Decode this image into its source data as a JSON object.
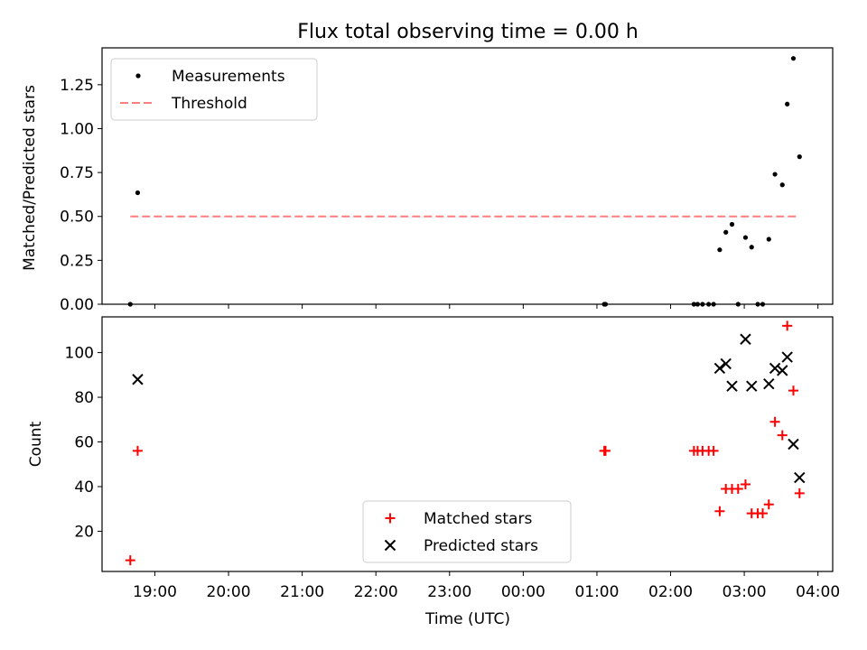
{
  "title": "Flux total observing time = 0.00 h",
  "chart_data": [
    {
      "type": "scatter",
      "panel": "top",
      "ylabel": "Matched/Predicted stars",
      "ylim": [
        0,
        1.46
      ],
      "yticks": [
        0.0,
        0.25,
        0.5,
        0.75,
        1.0,
        1.25
      ],
      "ytick_labels": [
        "0.00",
        "0.25",
        "0.50",
        "0.75",
        "1.00",
        "1.25"
      ],
      "legend_position": "top-left",
      "series": [
        {
          "name": "Measurements",
          "marker": "dot",
          "color": "#000000",
          "points": [
            {
              "t": "18:40",
              "y": 0.0
            },
            {
              "t": "18:46",
              "y": 0.635
            },
            {
              "t": "01:06",
              "y": 0.0
            },
            {
              "t": "01:07",
              "y": 0.0
            },
            {
              "t": "02:19",
              "y": 0.0
            },
            {
              "t": "02:22",
              "y": 0.0
            },
            {
              "t": "02:26",
              "y": 0.0
            },
            {
              "t": "02:31",
              "y": 0.0
            },
            {
              "t": "02:35",
              "y": 0.0
            },
            {
              "t": "02:40",
              "y": 0.31
            },
            {
              "t": "02:45",
              "y": 0.41
            },
            {
              "t": "02:50",
              "y": 0.455
            },
            {
              "t": "02:55",
              "y": 0.0
            },
            {
              "t": "03:01",
              "y": 0.38
            },
            {
              "t": "03:06",
              "y": 0.325
            },
            {
              "t": "03:11",
              "y": 0.0
            },
            {
              "t": "03:15",
              "y": 0.0
            },
            {
              "t": "03:20",
              "y": 0.37
            },
            {
              "t": "03:25",
              "y": 0.74
            },
            {
              "t": "03:31",
              "y": 0.68
            },
            {
              "t": "03:35",
              "y": 1.14
            },
            {
              "t": "03:40",
              "y": 1.4
            },
            {
              "t": "03:45",
              "y": 0.84
            }
          ]
        },
        {
          "name": "Threshold",
          "marker": "dashed-line",
          "color": "#ff7f7f",
          "points": [
            {
              "t": "18:40",
              "y": 0.5
            },
            {
              "t": "03:45",
              "y": 0.5
            }
          ]
        }
      ]
    },
    {
      "type": "scatter",
      "panel": "bottom",
      "xlabel": "Time (UTC)",
      "ylabel": "Count",
      "ylim": [
        2,
        116
      ],
      "yticks": [
        20,
        40,
        60,
        80,
        100
      ],
      "ytick_labels": [
        "20",
        "40",
        "60",
        "80",
        "100"
      ],
      "xlim": [
        "18:17",
        "04:12"
      ],
      "xticks": [
        "19:00",
        "20:00",
        "21:00",
        "22:00",
        "23:00",
        "00:00",
        "01:00",
        "02:00",
        "03:00",
        "04:00"
      ],
      "legend_position": "bottom-center",
      "series": [
        {
          "name": "Matched stars",
          "marker": "plus",
          "color": "#ff0000",
          "points": [
            {
              "t": "18:40",
              "y": 7
            },
            {
              "t": "18:46",
              "y": 56
            },
            {
              "t": "01:06",
              "y": 56
            },
            {
              "t": "01:07",
              "y": 56
            },
            {
              "t": "02:19",
              "y": 56
            },
            {
              "t": "02:22",
              "y": 56
            },
            {
              "t": "02:26",
              "y": 56
            },
            {
              "t": "02:31",
              "y": 56
            },
            {
              "t": "02:35",
              "y": 56
            },
            {
              "t": "02:40",
              "y": 29
            },
            {
              "t": "02:45",
              "y": 39
            },
            {
              "t": "02:50",
              "y": 39
            },
            {
              "t": "02:55",
              "y": 39
            },
            {
              "t": "03:01",
              "y": 41
            },
            {
              "t": "03:06",
              "y": 28
            },
            {
              "t": "03:11",
              "y": 28
            },
            {
              "t": "03:15",
              "y": 28
            },
            {
              "t": "03:20",
              "y": 32
            },
            {
              "t": "03:25",
              "y": 69
            },
            {
              "t": "03:31",
              "y": 63
            },
            {
              "t": "03:35",
              "y": 112
            },
            {
              "t": "03:40",
              "y": 83
            },
            {
              "t": "03:45",
              "y": 37
            }
          ]
        },
        {
          "name": "Predicted stars",
          "marker": "x",
          "color": "#000000",
          "points": [
            {
              "t": "18:46",
              "y": 88
            },
            {
              "t": "02:40",
              "y": 93
            },
            {
              "t": "02:45",
              "y": 95
            },
            {
              "t": "02:50",
              "y": 85
            },
            {
              "t": "03:01",
              "y": 106
            },
            {
              "t": "03:06",
              "y": 85
            },
            {
              "t": "03:20",
              "y": 86
            },
            {
              "t": "03:25",
              "y": 93
            },
            {
              "t": "03:31",
              "y": 92
            },
            {
              "t": "03:35",
              "y": 98
            },
            {
              "t": "03:40",
              "y": 59
            },
            {
              "t": "03:45",
              "y": 44
            }
          ]
        }
      ]
    }
  ]
}
